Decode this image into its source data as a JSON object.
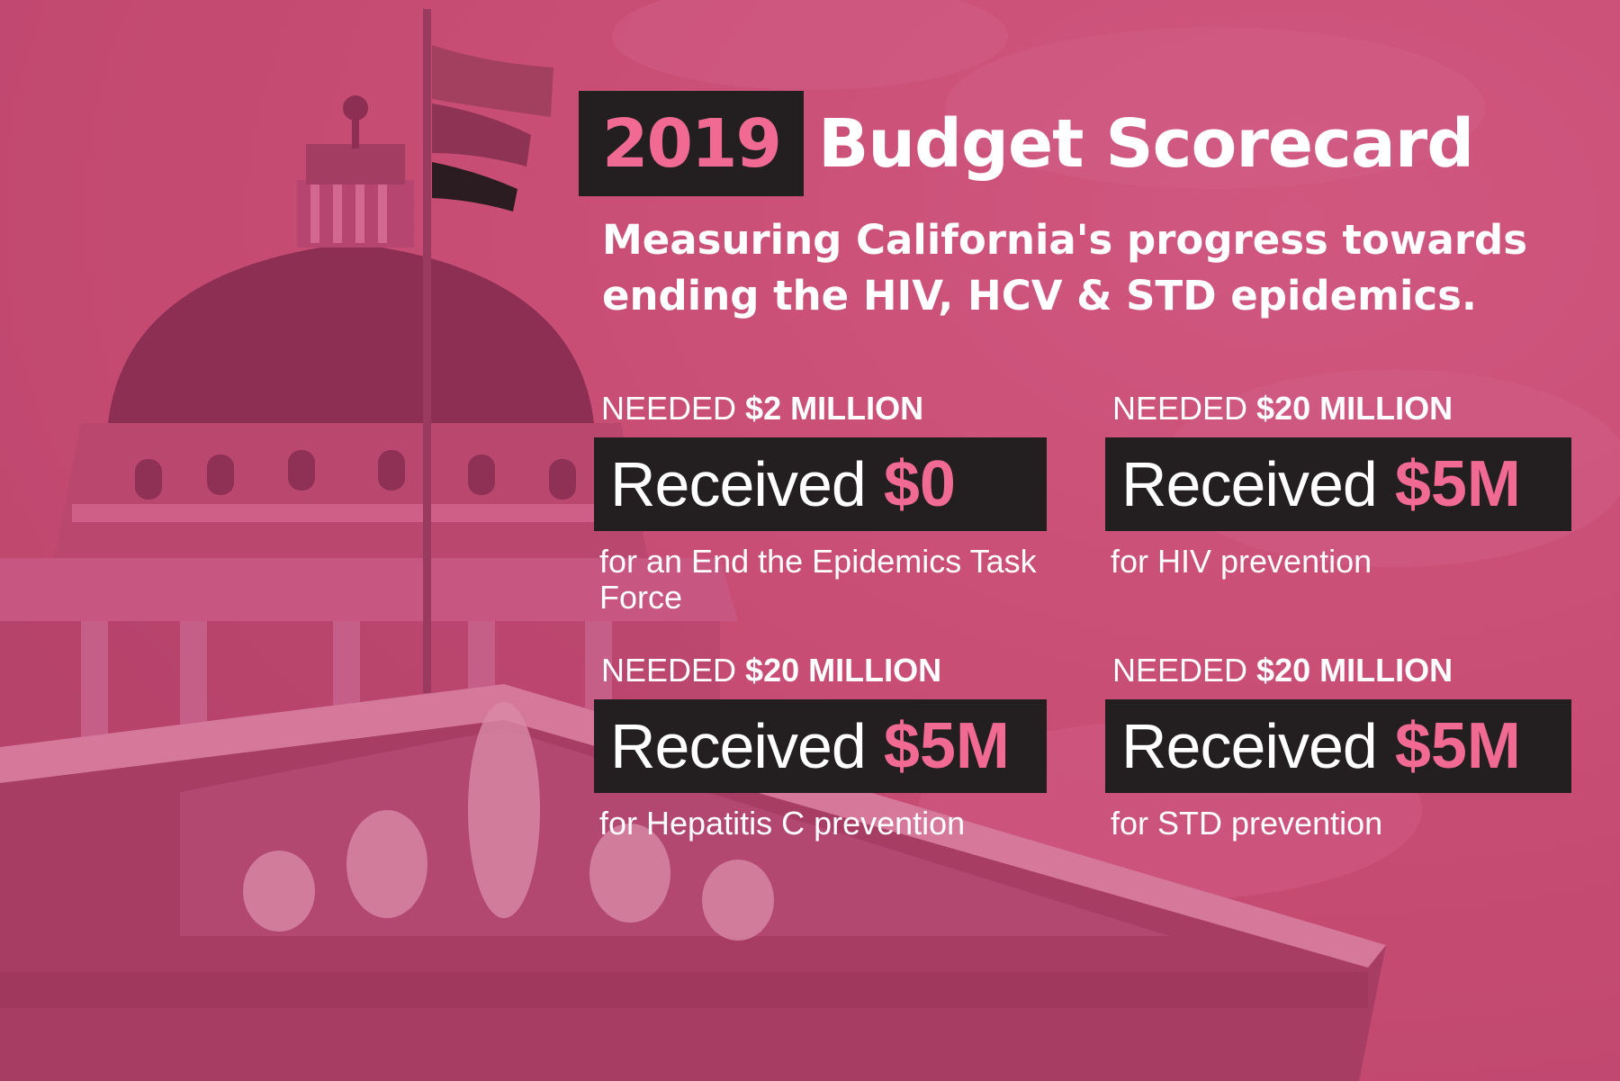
{
  "title": {
    "year": "2019",
    "text": "Budget Scorecard"
  },
  "subtitle": "Measuring California's progress towards ending the HIV, HCV & STD epidemics.",
  "cards": [
    {
      "needed_prefix": "NEEDED",
      "needed_amount": "$2 MILLION",
      "received_label": "Received",
      "received_amount": "$0",
      "purpose": "for an End the Epidemics Task Force"
    },
    {
      "needed_prefix": "NEEDED",
      "needed_amount": "$20 MILLION",
      "received_label": "Received",
      "received_amount": "$5M",
      "purpose": "for HIV prevention"
    },
    {
      "needed_prefix": "NEEDED",
      "needed_amount": "$20 MILLION",
      "received_label": "Received",
      "received_amount": "$5M",
      "purpose": "for Hepatitis C prevention"
    },
    {
      "needed_prefix": "NEEDED",
      "needed_amount": "$20 MILLION",
      "received_label": "Received",
      "received_amount": "$5M",
      "purpose": "for STD prevention"
    }
  ],
  "colors": {
    "background": "#c64b73",
    "box": "#231f20",
    "accent": "#f06a93",
    "text": "#ffffff"
  }
}
